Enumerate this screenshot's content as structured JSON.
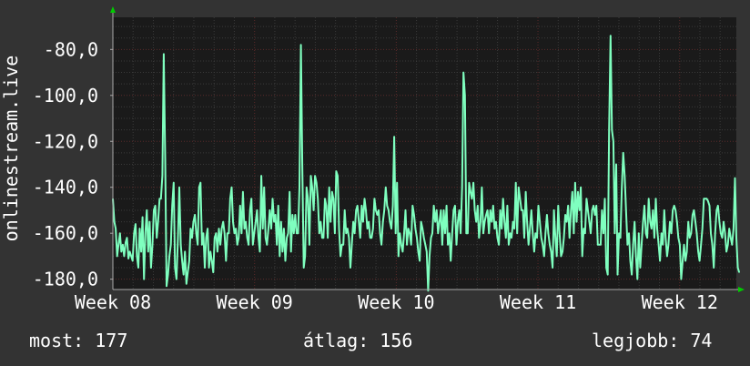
{
  "chart_data": {
    "type": "line",
    "ylabel": "onlinestream.live",
    "x_ticks": [
      "Week 08",
      "Week 09",
      "Week 10",
      "Week 11",
      "Week 12"
    ],
    "y_ticks": [
      "-80,0",
      "-100,0",
      "-120,0",
      "-140,0",
      "-160,0",
      "-180,0"
    ],
    "y_tick_values": [
      -80,
      -100,
      -120,
      -140,
      -160,
      -180
    ],
    "ylim": [
      -184.5,
      -66
    ],
    "xlim": [
      0,
      4.4
    ],
    "grid": true,
    "colors": {
      "background": "#333333",
      "plot_background": "#1a1a1a",
      "grid_major": "#5a2a2a",
      "grid_minor": "#3a3a3a",
      "line": "#7fffbf",
      "arrow": "#00cc00"
    },
    "series": [
      {
        "values": [
          -145,
          -155,
          -158,
          -170,
          -165,
          -160,
          -168,
          -165,
          -170,
          -164,
          -162,
          -171,
          -168,
          -170,
          -172,
          -160,
          -156,
          -170,
          -175,
          -158,
          -168,
          -153,
          -180,
          -160,
          -150,
          -168,
          -155,
          -175,
          -165,
          -150,
          -148,
          -162,
          -155,
          -145,
          -145,
          -135,
          -82,
          -128,
          -183,
          -178,
          -170,
          -165,
          -148,
          -138,
          -175,
          -180,
          -162,
          -140,
          -165,
          -172,
          -178,
          -168,
          -182,
          -177,
          -172,
          -158,
          -162,
          -155,
          -152,
          -160,
          -165,
          -140,
          -138,
          -165,
          -160,
          -175,
          -162,
          -158,
          -175,
          -168,
          -172,
          -177,
          -162,
          -160,
          -168,
          -158,
          -165,
          -158,
          -155,
          -160,
          -172,
          -160,
          -160,
          -145,
          -140,
          -155,
          -160,
          -158,
          -165,
          -162,
          -148,
          -160,
          -142,
          -158,
          -155,
          -162,
          -165,
          -150,
          -145,
          -165,
          -160,
          -155,
          -150,
          -162,
          -168,
          -135,
          -158,
          -140,
          -162,
          -165,
          -158,
          -150,
          -158,
          -145,
          -155,
          -152,
          -165,
          -148,
          -170,
          -155,
          -168,
          -158,
          -172,
          -162,
          -160,
          -142,
          -168,
          -152,
          -160,
          -152,
          -160,
          -160,
          -140,
          -78,
          -130,
          -175,
          -170,
          -140,
          -145,
          -165,
          -135,
          -140,
          -150,
          -135,
          -138,
          -145,
          -160,
          -155,
          -162,
          -162,
          -145,
          -148,
          -162,
          -140,
          -155,
          -142,
          -145,
          -160,
          -133,
          -135,
          -158,
          -170,
          -165,
          -165,
          -150,
          -160,
          -158,
          -162,
          -175,
          -165,
          -155,
          -160,
          -150,
          -148,
          -155,
          -162,
          -148,
          -155,
          -145,
          -150,
          -158,
          -155,
          -162,
          -162,
          -158,
          -145,
          -150,
          -152,
          -150,
          -160,
          -165,
          -155,
          -150,
          -140,
          -148,
          -150,
          -155,
          -158,
          -148,
          -118,
          -160,
          -138,
          -170,
          -160,
          -165,
          -168,
          -160,
          -150,
          -165,
          -158,
          -160,
          -165,
          -148,
          -152,
          -158,
          -162,
          -168,
          -172,
          -155,
          -158,
          -162,
          -165,
          -168,
          -185,
          -170,
          -162,
          -160,
          -148,
          -155,
          -150,
          -160,
          -155,
          -150,
          -165,
          -150,
          -160,
          -148,
          -165,
          -160,
          -172,
          -160,
          -150,
          -148,
          -165,
          -155,
          -150,
          -160,
          -140,
          -90,
          -100,
          -160,
          -160,
          -138,
          -142,
          -145,
          -138,
          -150,
          -155,
          -148,
          -162,
          -155,
          -140,
          -160,
          -155,
          -152,
          -150,
          -160,
          -150,
          -155,
          -148,
          -158,
          -155,
          -162,
          -165,
          -150,
          -158,
          -145,
          -155,
          -162,
          -148,
          -165,
          -160,
          -162,
          -155,
          -158,
          -138,
          -160,
          -140,
          -145,
          -150,
          -150,
          -162,
          -142,
          -155,
          -165,
          -158,
          -150,
          -160,
          -168,
          -160,
          -162,
          -148,
          -155,
          -162,
          -165,
          -170,
          -160,
          -152,
          -160,
          -165,
          -168,
          -175,
          -150,
          -162,
          -170,
          -148,
          -160,
          -170,
          -168,
          -162,
          -152,
          -155,
          -148,
          -162,
          -150,
          -142,
          -160,
          -138,
          -155,
          -142,
          -150,
          -140,
          -170,
          -158,
          -160,
          -145,
          -150,
          -155,
          -160,
          -150,
          -148,
          -152,
          -148,
          -165,
          -165,
          -165,
          -150,
          -160,
          -145,
          -175,
          -178,
          -115,
          -74,
          -115,
          -120,
          -160,
          -130,
          -178,
          -160,
          -162,
          -140,
          -125,
          -135,
          -150,
          -165,
          -160,
          -172,
          -178,
          -165,
          -155,
          -170,
          -180,
          -160,
          -175,
          -165,
          -155,
          -148,
          -160,
          -162,
          -145,
          -155,
          -158,
          -150,
          -162,
          -145,
          -158,
          -165,
          -172,
          -160,
          -165,
          -150,
          -162,
          -170,
          -165,
          -155,
          -160,
          -150,
          -148,
          -150,
          -155,
          -162,
          -165,
          -180,
          -172,
          -165,
          -172,
          -168,
          -155,
          -162,
          -160,
          -152,
          -150,
          -155,
          -160,
          -168,
          -172,
          -165,
          -158,
          -145,
          -145,
          -145,
          -146,
          -148,
          -160,
          -165,
          -175,
          -160,
          -150,
          -148,
          -155,
          -160,
          -162,
          -155,
          -160,
          -168,
          -165,
          -158,
          -162,
          -165,
          -158,
          -136,
          -162,
          -175,
          -177
        ]
      }
    ]
  },
  "stats": {
    "now": "most: 177",
    "avg": "átlag: 156",
    "best": "legjobb: 74"
  }
}
